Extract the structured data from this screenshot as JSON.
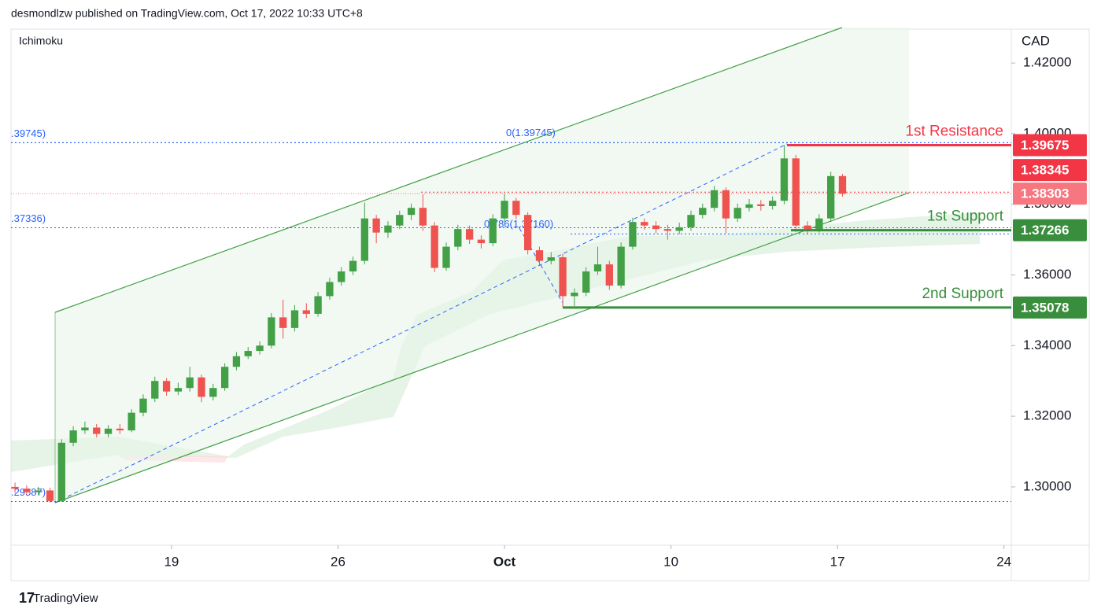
{
  "header": "desmondlzw published on TradingView.com, Oct 17, 2022 10:33 UTC+8",
  "footer": "TradingView",
  "chart_data": {
    "type": "candlestick",
    "indicator": "Ichimoku",
    "y_axis_label": "CAD",
    "xlim": [
      -4.82,
      25.22
    ],
    "xticks": [
      {
        "value": 0,
        "label": "19"
      },
      {
        "value": 5,
        "label": "26"
      },
      {
        "value": 10,
        "label": "Oct"
      },
      {
        "value": 15,
        "label": "10"
      },
      {
        "value": 20,
        "label": "17"
      },
      {
        "value": 25,
        "label": "24"
      }
    ],
    "ylim": [
      1.2835,
      1.4296
    ],
    "yticks": [
      {
        "value": 1.3,
        "label": "1.30000"
      },
      {
        "value": 1.32,
        "label": "1.32000"
      },
      {
        "value": 1.34,
        "label": "1.34000"
      },
      {
        "value": 1.36,
        "label": "1.36000"
      },
      {
        "value": 1.38,
        "label": "1.38000"
      },
      {
        "value": 1.4,
        "label": "1.40000"
      },
      {
        "value": 1.42,
        "label": "1.42000"
      }
    ],
    "up_color": "#43a047",
    "down_color": "#ef5350",
    "x": [
      -4.7,
      -4.35,
      -4,
      -3.65,
      -3.3,
      -2.95,
      -2.6,
      -2.25,
      -1.9,
      -1.55,
      -1.2,
      -0.85,
      -0.5,
      -0.15,
      0.2,
      0.55,
      0.9,
      1.25,
      1.6,
      1.95,
      2.3,
      2.65,
      3,
      3.35,
      3.7,
      4.05,
      4.4,
      4.75,
      5.1,
      5.45,
      5.8,
      6.15,
      6.5,
      6.85,
      7.2,
      7.55,
      7.9,
      8.25,
      8.6,
      8.95,
      9.3,
      9.65,
      10,
      10.35,
      10.7,
      11.05,
      11.4,
      11.75,
      12.1,
      12.45,
      12.8,
      13.15,
      13.5,
      13.85,
      14.2,
      14.55,
      14.9,
      15.25,
      15.6,
      15.95,
      16.3,
      16.65,
      17,
      17.35,
      17.7,
      18.05,
      18.4,
      18.75,
      19.1,
      19.45,
      19.8,
      20.15
    ],
    "open": [
      1.3,
      1.2995,
      1.2985,
      1.299,
      1.296,
      1.3125,
      1.316,
      1.3168,
      1.315,
      1.3165,
      1.316,
      1.321,
      1.325,
      1.33,
      1.327,
      1.328,
      1.331,
      1.3255,
      1.328,
      1.334,
      1.337,
      1.3385,
      1.34,
      1.348,
      1.345,
      1.35,
      1.349,
      1.354,
      1.358,
      1.361,
      1.364,
      1.376,
      1.372,
      1.374,
      1.377,
      1.379,
      1.374,
      1.362,
      1.368,
      1.373,
      1.37,
      1.369,
      1.376,
      1.381,
      1.377,
      1.367,
      1.364,
      1.365,
      1.354,
      1.355,
      1.361,
      1.363,
      1.357,
      1.368,
      1.375,
      1.374,
      1.373,
      1.3725,
      1.3735,
      1.377,
      1.379,
      1.384,
      1.376,
      1.379,
      1.38,
      1.3795,
      1.381,
      1.393,
      1.374,
      1.373,
      1.376,
      1.388
    ],
    "high": [
      1.3012,
      1.3005,
      1.3,
      1.2998,
      1.3135,
      1.3172,
      1.3185,
      1.3178,
      1.3175,
      1.3178,
      1.322,
      1.3262,
      1.3312,
      1.3308,
      1.3295,
      1.334,
      1.3318,
      1.3292,
      1.335,
      1.3382,
      1.3396,
      1.3412,
      1.3492,
      1.353,
      1.3515,
      1.352,
      1.3552,
      1.3592,
      1.3622,
      1.3652,
      1.3805,
      1.377,
      1.3752,
      1.3782,
      1.3802,
      1.3828,
      1.375,
      1.3692,
      1.3742,
      1.374,
      1.3712,
      1.3772,
      1.383,
      1.3818,
      1.3778,
      1.368,
      1.3665,
      1.366,
      1.3562,
      1.3622,
      1.368,
      1.364,
      1.3692,
      1.3762,
      1.376,
      1.3752,
      1.3742,
      1.3748,
      1.3782,
      1.3802,
      1.3852,
      1.3848,
      1.3802,
      1.3815,
      1.3812,
      1.3822,
      1.3968,
      1.394,
      1.3752,
      1.3772,
      1.3892,
      1.3886
    ],
    "low": [
      1.2983,
      1.2975,
      1.2978,
      1.2956,
      1.2958,
      1.3115,
      1.315,
      1.314,
      1.314,
      1.315,
      1.3155,
      1.32,
      1.324,
      1.3258,
      1.326,
      1.327,
      1.324,
      1.3245,
      1.3272,
      1.333,
      1.3362,
      1.3375,
      1.3392,
      1.342,
      1.344,
      1.3478,
      1.3482,
      1.353,
      1.357,
      1.36,
      1.363,
      1.369,
      1.3705,
      1.373,
      1.3755,
      1.3725,
      1.3608,
      1.3612,
      1.367,
      1.3688,
      1.3675,
      1.3682,
      1.375,
      1.3758,
      1.3658,
      1.3628,
      1.363,
      1.351,
      1.3512,
      1.354,
      1.36,
      1.3558,
      1.3562,
      1.3672,
      1.3728,
      1.3718,
      1.37,
      1.3715,
      1.3725,
      1.376,
      1.378,
      1.3718,
      1.375,
      1.378,
      1.3782,
      1.3785,
      1.38,
      1.3722,
      1.3715,
      1.372,
      1.375,
      1.3822
    ],
    "close": [
      1.2995,
      1.2985,
      1.299,
      1.296,
      1.3125,
      1.316,
      1.3168,
      1.315,
      1.3165,
      1.316,
      1.321,
      1.325,
      1.33,
      1.327,
      1.328,
      1.331,
      1.3255,
      1.328,
      1.334,
      1.337,
      1.3385,
      1.34,
      1.348,
      1.345,
      1.35,
      1.349,
      1.354,
      1.358,
      1.361,
      1.364,
      1.376,
      1.372,
      1.374,
      1.377,
      1.379,
      1.374,
      1.362,
      1.368,
      1.373,
      1.37,
      1.369,
      1.376,
      1.381,
      1.377,
      1.367,
      1.364,
      1.365,
      1.354,
      1.355,
      1.361,
      1.363,
      1.357,
      1.368,
      1.375,
      1.374,
      1.373,
      1.3725,
      1.3735,
      1.377,
      1.379,
      1.384,
      1.376,
      1.379,
      1.38,
      1.3795,
      1.381,
      1.393,
      1.374,
      1.373,
      1.376,
      1.388,
      1.383
    ],
    "levels": [
      {
        "name": "1st Resistance",
        "value": 1.39675,
        "color": "#f23645"
      },
      {
        "name": "1st Support",
        "value": 1.37266,
        "color": "#388e3c"
      },
      {
        "name": "2nd Support",
        "value": 1.35078,
        "color": "#388e3c"
      }
    ],
    "price_tags": [
      {
        "value": 1.39675,
        "color": "#f23645"
      },
      {
        "value": 1.38345,
        "color": "#f23645"
      },
      {
        "value": 1.38303,
        "color": "#f7767f"
      }
    ],
    "fib_lines": [
      {
        "value": 1.39745,
        "label": ".39745)"
      },
      {
        "value": 1.37336,
        "label": ".37336)"
      },
      {
        "value": 1.29587,
        "label": ".29587)"
      }
    ],
    "fib_levels": [
      {
        "value": 1.39745,
        "label": "0(1.39745)"
      },
      {
        "value": 1.3716,
        "label": "0.786(1.37160)"
      }
    ]
  }
}
